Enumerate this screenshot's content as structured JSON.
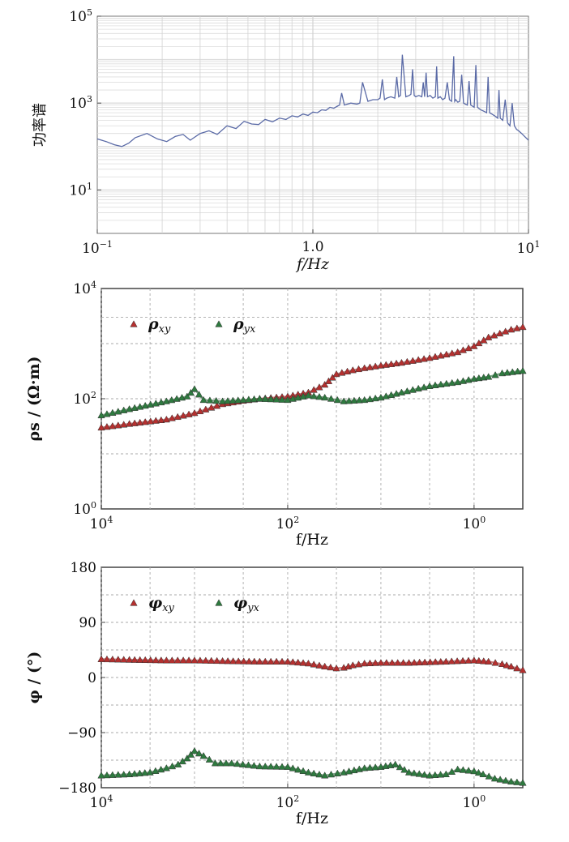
{
  "chart_data": [
    {
      "type": "line",
      "title": "",
      "xlabel": "f/Hz",
      "ylabel": "功率谱",
      "x_scale": "log",
      "y_scale": "log",
      "xlim": [
        0.1,
        10
      ],
      "ylim": [
        1,
        100000
      ],
      "x_ticks": [
        {
          "value": 0.1,
          "base": "10",
          "exp": "−1"
        },
        {
          "value": 1,
          "base": "10",
          "exp": "0",
          "label": "1.0"
        },
        {
          "value": 10,
          "base": "10",
          "exp": "1"
        }
      ],
      "y_ticks": [
        {
          "value": 10,
          "base": "10",
          "exp": "1"
        },
        {
          "value": 1000,
          "base": "10",
          "exp": "3"
        },
        {
          "value": 100000,
          "base": "10",
          "exp": "5"
        }
      ],
      "grid": true,
      "series": [
        {
          "color": "#5a6aa6",
          "x": [
            0.1,
            0.11,
            0.12,
            0.13,
            0.14,
            0.15,
            0.17,
            0.19,
            0.21,
            0.23,
            0.25,
            0.27,
            0.3,
            0.33,
            0.36,
            0.4,
            0.44,
            0.48,
            0.52,
            0.56,
            0.6,
            0.65,
            0.7,
            0.75,
            0.8,
            0.85,
            0.9,
            0.95,
            1.0,
            1.05,
            1.1,
            1.15,
            1.2,
            1.25,
            1.3,
            1.33,
            1.36,
            1.4,
            1.45,
            1.5,
            1.6,
            1.65,
            1.7,
            1.8,
            1.9,
            2.0,
            2.05,
            2.1,
            2.15,
            2.2,
            2.3,
            2.4,
            2.45,
            2.5,
            2.55,
            2.6,
            2.7,
            2.8,
            2.85,
            2.9,
            2.95,
            3.0,
            3.1,
            3.2,
            3.25,
            3.3,
            3.35,
            3.4,
            3.5,
            3.6,
            3.7,
            3.75,
            3.8,
            3.9,
            4.0,
            4.1,
            4.2,
            4.3,
            4.4,
            4.5,
            4.55,
            4.6,
            4.7,
            4.8,
            4.9,
            5.0,
            5.1,
            5.2,
            5.3,
            5.4,
            5.5,
            5.6,
            5.7,
            5.8,
            5.9,
            6.0,
            6.2,
            6.4,
            6.5,
            6.6,
            6.8,
            7.0,
            7.2,
            7.3,
            7.4,
            7.6,
            7.8,
            8.0,
            8.2,
            8.4,
            8.6,
            8.8,
            9.0,
            9.3,
            9.6,
            10.0
          ],
          "y": [
            150,
            130,
            110,
            100,
            120,
            160,
            200,
            150,
            130,
            170,
            190,
            140,
            200,
            230,
            190,
            300,
            260,
            380,
            330,
            320,
            420,
            370,
            450,
            420,
            510,
            480,
            560,
            520,
            620,
            600,
            700,
            680,
            800,
            760,
            850,
            900,
            1700,
            900,
            950,
            1000,
            950,
            1000,
            3000,
            1100,
            1200,
            1200,
            1300,
            3500,
            1200,
            1300,
            1400,
            1300,
            4000,
            1400,
            1500,
            13000,
            1400,
            1500,
            1600,
            6000,
            1500,
            1400,
            1500,
            1400,
            3000,
            1400,
            5000,
            1400,
            1500,
            1300,
            1400,
            7000,
            1300,
            1400,
            1200,
            1300,
            3000,
            1200,
            1100,
            12000,
            1100,
            1200,
            1050,
            1100,
            4500,
            1000,
            950,
            900,
            3200,
            900,
            850,
            800,
            7500,
            800,
            750,
            700,
            650,
            600,
            4000,
            600,
            550,
            500,
            450,
            2000,
            450,
            400,
            1200,
            350,
            300,
            1000,
            300,
            250,
            230,
            200,
            170,
            140
          ]
        }
      ]
    },
    {
      "type": "scatter",
      "title": "",
      "xlabel": "f/Hz",
      "ylabel": "ρs / (Ω·m)",
      "x_scale": "log",
      "x_reversed": true,
      "y_scale": "log",
      "xlim": [
        10000,
        0.3
      ],
      "ylim": [
        1,
        10000
      ],
      "x_ticks": [
        {
          "value": 10000,
          "base": "10",
          "exp": "4"
        },
        {
          "value": 100,
          "base": "10",
          "exp": "2"
        },
        {
          "value": 1,
          "base": "10",
          "exp": "0"
        }
      ],
      "y_ticks": [
        {
          "value": 1,
          "base": "10",
          "exp": "0"
        },
        {
          "value": 100,
          "base": "10",
          "exp": "2"
        },
        {
          "value": 10000,
          "base": "10",
          "exp": "4"
        }
      ],
      "grid": true,
      "legend_position": "top-left",
      "legend": [
        {
          "symbol": "ρ",
          "sub": "xy",
          "color": "#b5302f"
        },
        {
          "symbol": "ρ",
          "sub": "yx",
          "color": "#2e7a3f"
        }
      ],
      "series": [
        {
          "legend_index": 0,
          "color": "#b5302f",
          "x": [
            10000,
            5000,
            2000,
            1000,
            500,
            300,
            200,
            100,
            60,
            40,
            30,
            20,
            15,
            10,
            6,
            3,
            1.5,
            1,
            0.7,
            0.4,
            0.3
          ],
          "y": [
            30,
            35,
            42,
            55,
            80,
            92,
            100,
            110,
            130,
            180,
            280,
            330,
            360,
            400,
            450,
            550,
            700,
            900,
            1300,
            1800,
            2000
          ]
        },
        {
          "legend_index": 1,
          "color": "#2e7a3f",
          "x": [
            10000,
            5000,
            2000,
            1200,
            1000,
            800,
            500,
            300,
            200,
            100,
            60,
            40,
            25,
            15,
            10,
            6,
            3,
            1.5,
            1,
            0.7,
            0.5,
            0.3
          ],
          "y": [
            50,
            65,
            90,
            110,
            150,
            95,
            90,
            95,
            100,
            95,
            115,
            105,
            90,
            95,
            105,
            130,
            170,
            200,
            230,
            250,
            290,
            320
          ]
        }
      ]
    },
    {
      "type": "scatter",
      "title": "",
      "xlabel": "f/Hz",
      "ylabel": "φ / (°)",
      "x_scale": "log",
      "x_reversed": true,
      "y_scale": "linear",
      "xlim": [
        10000,
        0.3
      ],
      "ylim": [
        -180,
        180
      ],
      "x_ticks": [
        {
          "value": 10000,
          "base": "10",
          "exp": "4"
        },
        {
          "value": 100,
          "base": "10",
          "exp": "2"
        },
        {
          "value": 1,
          "base": "10",
          "exp": "0"
        }
      ],
      "y_ticks": [
        {
          "value": 180,
          "label": "180"
        },
        {
          "value": 90,
          "label": "90"
        },
        {
          "value": 0,
          "label": "0"
        },
        {
          "value": -90,
          "label": "−90"
        },
        {
          "value": -180,
          "label": "−180"
        }
      ],
      "grid": true,
      "legend_position": "top-left",
      "legend": [
        {
          "symbol": "φ",
          "sub": "xy",
          "color": "#b5302f"
        },
        {
          "symbol": "φ",
          "sub": "yx",
          "color": "#2e7a3f"
        }
      ],
      "series": [
        {
          "legend_index": 0,
          "color": "#b5302f",
          "x": [
            10000,
            5000,
            2000,
            1000,
            500,
            200,
            100,
            60,
            40,
            30,
            25,
            20,
            15,
            10,
            5,
            2,
            1,
            0.7,
            0.5,
            0.4,
            0.3
          ],
          "y": [
            30,
            29,
            28,
            28,
            27,
            26,
            26,
            23,
            18,
            15,
            16,
            20,
            23,
            24,
            24,
            26,
            28,
            26,
            22,
            18,
            12
          ]
        },
        {
          "legend_index": 1,
          "color": "#2e7a3f",
          "x": [
            10000,
            5000,
            3000,
            2000,
            1500,
            1200,
            1000,
            800,
            600,
            400,
            200,
            100,
            60,
            40,
            25,
            15,
            10,
            7,
            5,
            3,
            2,
            1.5,
            1,
            0.8,
            0.6,
            0.4,
            0.3
          ],
          "y": [
            -160,
            -158,
            -155,
            -148,
            -142,
            -132,
            -120,
            -128,
            -140,
            -140,
            -145,
            -146,
            -155,
            -160,
            -155,
            -148,
            -146,
            -142,
            -155,
            -160,
            -158,
            -150,
            -153,
            -158,
            -165,
            -170,
            -172
          ]
        }
      ]
    }
  ]
}
